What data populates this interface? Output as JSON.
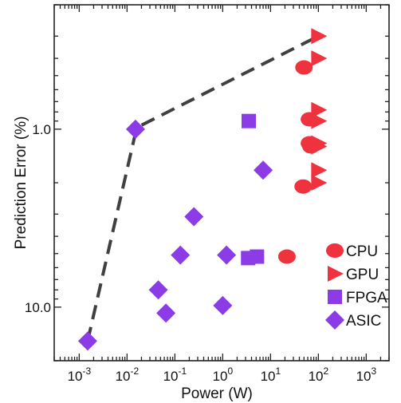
{
  "chart_data": {
    "type": "scatter",
    "xlabel": "Power (W)",
    "ylabel": "Prediction Error (%)",
    "x_scale": "log",
    "y_scale": "log",
    "y_inverted": true,
    "xlim": [
      0.0003,
      3000
    ],
    "ylim": [
      0.2,
      20
    ],
    "x_ticks": [
      {
        "value": 0.001,
        "base": "10",
        "exp": "-3"
      },
      {
        "value": 0.01,
        "base": "10",
        "exp": "-2"
      },
      {
        "value": 0.1,
        "base": "10",
        "exp": "-1"
      },
      {
        "value": 1,
        "base": "10",
        "exp": "0"
      },
      {
        "value": 10,
        "base": "10",
        "exp": "1"
      },
      {
        "value": 100,
        "base": "10",
        "exp": "2"
      },
      {
        "value": 1000,
        "base": "10",
        "exp": "3"
      }
    ],
    "y_ticks": [
      {
        "value": 1.0,
        "label": "1.0"
      },
      {
        "value": 10.0,
        "label": "10.0"
      }
    ],
    "grid": false,
    "legend_position": "bottom-right",
    "series": [
      {
        "name": "CPU",
        "marker": "circle",
        "color": "#f0323e",
        "points": [
          [
            50,
            0.45
          ],
          [
            65,
            0.88
          ],
          [
            65,
            1.2
          ],
          [
            70,
            1.25
          ],
          [
            48,
            2.1
          ],
          [
            22,
            5.2
          ]
        ]
      },
      {
        "name": "GPU",
        "marker": "triangle-right",
        "color": "#f0323e",
        "points": [
          [
            100,
            0.3
          ],
          [
            100,
            0.4
          ],
          [
            100,
            0.78
          ],
          [
            100,
            0.9
          ],
          [
            100,
            1.2
          ],
          [
            100,
            1.25
          ],
          [
            100,
            1.7
          ],
          [
            100,
            2.0
          ]
        ]
      },
      {
        "name": "FPGA",
        "marker": "square",
        "color": "#8c3ce6",
        "points": [
          [
            3.5,
            0.9
          ],
          [
            3.4,
            5.3
          ],
          [
            5.2,
            5.2
          ]
        ]
      },
      {
        "name": "ASIC",
        "marker": "diamond",
        "color": "#8c3ce6",
        "points": [
          [
            0.0015,
            15.5
          ],
          [
            0.015,
            1.0
          ],
          [
            0.045,
            8.0
          ],
          [
            0.065,
            10.8
          ],
          [
            0.13,
            5.1
          ],
          [
            0.25,
            3.1
          ],
          [
            1.0,
            9.8
          ],
          [
            1.2,
            5.1
          ],
          [
            7.0,
            1.7
          ]
        ]
      }
    ],
    "pareto_front": {
      "style": "dashed",
      "color": "#404040",
      "points": [
        [
          0.0015,
          15.5
        ],
        [
          0.015,
          1.05
        ],
        [
          0.02,
          0.95
        ],
        [
          100,
          0.3
        ]
      ]
    }
  }
}
